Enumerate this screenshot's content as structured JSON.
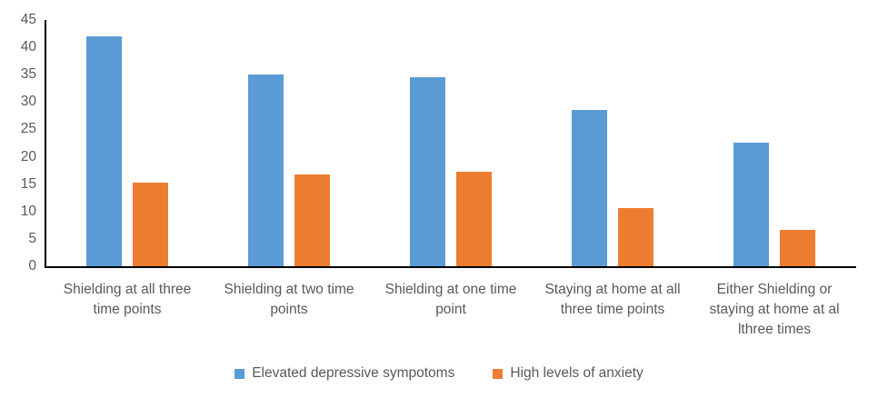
{
  "chart_data": {
    "type": "bar",
    "title": "",
    "xlabel": "",
    "ylabel": "",
    "categories": [
      "Shielding at all three\ntime points",
      "Shielding at two time\npoints",
      "Shielding at one time\npoint",
      "Staying at home at all\nthree time points",
      "Either Shielding or\nstaying at home at al\nlthree times"
    ],
    "series": [
      {
        "name": "Elevated depressive sympotoms",
        "color": "#5B9BD5",
        "values": [
          42,
          35,
          34.5,
          28.6,
          22.5
        ]
      },
      {
        "name": "High levels of anxiety",
        "color": "#ED7D31",
        "values": [
          15.3,
          16.8,
          17.3,
          10.7,
          6.7
        ]
      }
    ],
    "ylim": [
      0,
      45
    ],
    "ytick_step": 5,
    "ytick_labels": [
      "0",
      "5",
      "10",
      "15",
      "20",
      "25",
      "30",
      "35",
      "40",
      "45"
    ],
    "grid": false,
    "legend_position": "bottom",
    "colors": {
      "axis_line": "#000000",
      "tick_label": "#595959",
      "background": "#FFFFFF"
    }
  }
}
